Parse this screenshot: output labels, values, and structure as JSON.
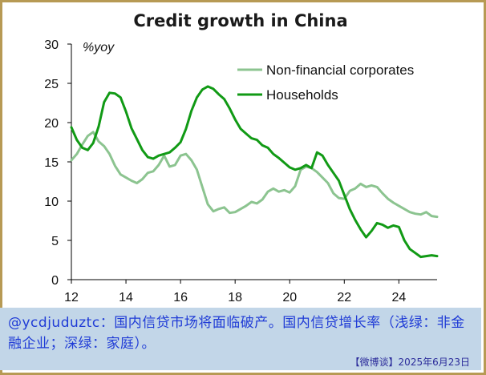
{
  "chart_data": {
    "type": "line",
    "title": "Credit growth in China",
    "ylabel": "%yoy",
    "xlabel": "",
    "xlim": [
      12,
      25.4
    ],
    "ylim": [
      0,
      30
    ],
    "xticks": [
      "12",
      "14",
      "16",
      "18",
      "20",
      "22",
      "24"
    ],
    "yticks": [
      "0",
      "5",
      "10",
      "15",
      "20",
      "25",
      "30"
    ],
    "grid": false,
    "legend": "top-right",
    "series": [
      {
        "name": "Non-financial corporates",
        "color": "#8cc490",
        "points": [
          [
            12.0,
            15.2
          ],
          [
            12.2,
            16.0
          ],
          [
            12.4,
            17.2
          ],
          [
            12.6,
            18.3
          ],
          [
            12.8,
            18.8
          ],
          [
            13.0,
            17.6
          ],
          [
            13.2,
            17.0
          ],
          [
            13.4,
            16.0
          ],
          [
            13.6,
            14.5
          ],
          [
            13.8,
            13.4
          ],
          [
            14.0,
            13.0
          ],
          [
            14.2,
            12.6
          ],
          [
            14.4,
            12.3
          ],
          [
            14.6,
            12.8
          ],
          [
            14.8,
            13.6
          ],
          [
            15.0,
            13.8
          ],
          [
            15.2,
            14.6
          ],
          [
            15.4,
            15.8
          ],
          [
            15.6,
            14.4
          ],
          [
            15.8,
            14.6
          ],
          [
            16.0,
            15.8
          ],
          [
            16.2,
            16.0
          ],
          [
            16.4,
            15.2
          ],
          [
            16.6,
            14.0
          ],
          [
            16.8,
            11.8
          ],
          [
            17.0,
            9.6
          ],
          [
            17.2,
            8.7
          ],
          [
            17.4,
            9.0
          ],
          [
            17.6,
            9.2
          ],
          [
            17.8,
            8.5
          ],
          [
            18.0,
            8.6
          ],
          [
            18.2,
            9.0
          ],
          [
            18.4,
            9.4
          ],
          [
            18.6,
            9.9
          ],
          [
            18.8,
            9.7
          ],
          [
            19.0,
            10.2
          ],
          [
            19.2,
            11.2
          ],
          [
            19.4,
            11.6
          ],
          [
            19.6,
            11.2
          ],
          [
            19.8,
            11.4
          ],
          [
            20.0,
            11.1
          ],
          [
            20.2,
            11.9
          ],
          [
            20.4,
            14.0
          ],
          [
            20.6,
            14.4
          ],
          [
            20.8,
            14.2
          ],
          [
            21.0,
            13.7
          ],
          [
            21.2,
            13.0
          ],
          [
            21.4,
            12.3
          ],
          [
            21.6,
            11.0
          ],
          [
            21.8,
            10.4
          ],
          [
            22.0,
            10.3
          ],
          [
            22.2,
            11.3
          ],
          [
            22.4,
            11.6
          ],
          [
            22.6,
            12.2
          ],
          [
            22.8,
            11.8
          ],
          [
            23.0,
            12.0
          ],
          [
            23.2,
            11.8
          ],
          [
            23.4,
            11.0
          ],
          [
            23.6,
            10.3
          ],
          [
            23.8,
            9.8
          ],
          [
            24.0,
            9.4
          ],
          [
            24.2,
            9.0
          ],
          [
            24.4,
            8.6
          ],
          [
            24.6,
            8.4
          ],
          [
            24.8,
            8.3
          ],
          [
            25.0,
            8.6
          ],
          [
            25.2,
            8.1
          ],
          [
            25.4,
            8.0
          ]
        ]
      },
      {
        "name": "Households",
        "color": "#119a15",
        "points": [
          [
            12.0,
            19.4
          ],
          [
            12.2,
            17.8
          ],
          [
            12.4,
            16.8
          ],
          [
            12.6,
            16.5
          ],
          [
            12.8,
            17.4
          ],
          [
            13.0,
            19.5
          ],
          [
            13.2,
            22.6
          ],
          [
            13.4,
            23.8
          ],
          [
            13.6,
            23.7
          ],
          [
            13.8,
            23.2
          ],
          [
            14.0,
            21.4
          ],
          [
            14.2,
            19.3
          ],
          [
            14.4,
            17.9
          ],
          [
            14.6,
            16.5
          ],
          [
            14.8,
            15.6
          ],
          [
            15.0,
            15.4
          ],
          [
            15.2,
            15.8
          ],
          [
            15.4,
            16.0
          ],
          [
            15.6,
            16.2
          ],
          [
            15.8,
            16.8
          ],
          [
            16.0,
            17.5
          ],
          [
            16.2,
            19.2
          ],
          [
            16.4,
            21.5
          ],
          [
            16.6,
            23.2
          ],
          [
            16.8,
            24.2
          ],
          [
            17.0,
            24.6
          ],
          [
            17.2,
            24.3
          ],
          [
            17.4,
            23.6
          ],
          [
            17.6,
            23.0
          ],
          [
            17.8,
            21.8
          ],
          [
            18.0,
            20.4
          ],
          [
            18.2,
            19.2
          ],
          [
            18.4,
            18.6
          ],
          [
            18.6,
            18.0
          ],
          [
            18.8,
            17.8
          ],
          [
            19.0,
            17.1
          ],
          [
            19.2,
            16.8
          ],
          [
            19.4,
            16.0
          ],
          [
            19.6,
            15.5
          ],
          [
            19.8,
            14.9
          ],
          [
            20.0,
            14.3
          ],
          [
            20.2,
            14.0
          ],
          [
            20.4,
            14.2
          ],
          [
            20.6,
            14.6
          ],
          [
            20.8,
            14.2
          ],
          [
            21.0,
            16.2
          ],
          [
            21.2,
            15.8
          ],
          [
            21.4,
            14.6
          ],
          [
            21.6,
            13.6
          ],
          [
            21.8,
            12.6
          ],
          [
            22.0,
            10.8
          ],
          [
            22.2,
            9.0
          ],
          [
            22.4,
            7.6
          ],
          [
            22.6,
            6.4
          ],
          [
            22.8,
            5.4
          ],
          [
            23.0,
            6.2
          ],
          [
            23.2,
            7.2
          ],
          [
            23.4,
            7.0
          ],
          [
            23.6,
            6.6
          ],
          [
            23.8,
            6.9
          ],
          [
            24.0,
            6.7
          ],
          [
            24.2,
            5.0
          ],
          [
            24.4,
            3.9
          ],
          [
            24.6,
            3.4
          ],
          [
            24.8,
            2.9
          ],
          [
            25.0,
            3.0
          ],
          [
            25.2,
            3.1
          ],
          [
            25.4,
            3.0
          ]
        ]
      }
    ]
  },
  "caption": {
    "text": "@ycdjuduztc：国内信贷市场将面临破产。国内信贷增长率（浅绿：非金融企业；深绿：家庭）。",
    "source": "【微博谈】2025年6月23日"
  }
}
